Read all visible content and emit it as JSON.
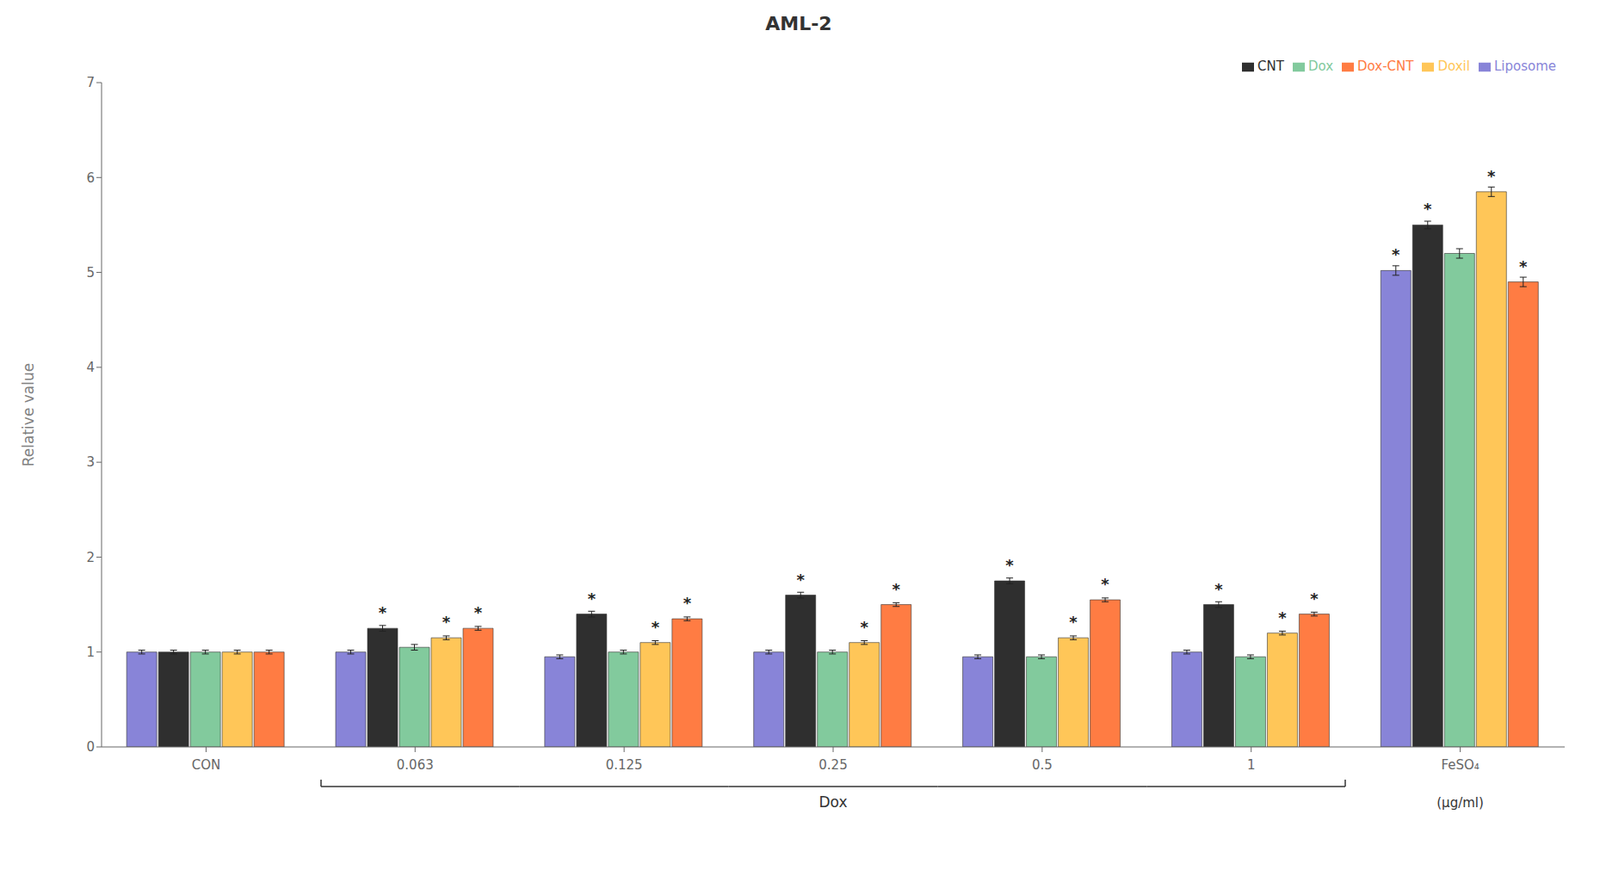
{
  "chart_data": {
    "type": "bar",
    "title": "AML-2",
    "y_label": "Relative value",
    "categories": [
      "CON",
      "0.063",
      "0.125",
      "0.25",
      "0.5",
      "1",
      "FeSO₄"
    ],
    "series": [
      {
        "name": "Liposome",
        "color": "#8884d8",
        "values": [
          1.0,
          1.0,
          0.95,
          1.0,
          0.95,
          1.0,
          5.02
        ],
        "errors": [
          0.02,
          0.02,
          0.02,
          0.02,
          0.02,
          0.02,
          0.05
        ],
        "significant": [
          false,
          false,
          false,
          false,
          false,
          false,
          true
        ]
      },
      {
        "name": "CNT",
        "color": "#2f2f2f",
        "values": [
          1.0,
          1.25,
          1.4,
          1.6,
          1.75,
          1.5,
          5.5
        ],
        "errors": [
          0.02,
          0.03,
          0.03,
          0.03,
          0.03,
          0.03,
          0.04
        ],
        "significant": [
          false,
          true,
          true,
          true,
          true,
          true,
          true
        ]
      },
      {
        "name": "Dox",
        "color": "#82ca9d",
        "values": [
          1.0,
          1.05,
          1.0,
          1.0,
          0.95,
          0.95,
          5.2
        ],
        "errors": [
          0.02,
          0.03,
          0.02,
          0.02,
          0.02,
          0.02,
          0.05
        ],
        "significant": [
          false,
          false,
          false,
          false,
          false,
          false,
          false
        ]
      },
      {
        "name": "Doxil",
        "color": "#ffc658",
        "values": [
          1.0,
          1.15,
          1.1,
          1.1,
          1.15,
          1.2,
          5.85
        ],
        "errors": [
          0.02,
          0.02,
          0.02,
          0.02,
          0.02,
          0.02,
          0.05
        ],
        "significant": [
          false,
          true,
          true,
          true,
          true,
          true,
          true
        ]
      },
      {
        "name": "Dox-CNT",
        "color": "#ff7c43",
        "values": [
          1.0,
          1.25,
          1.35,
          1.5,
          1.55,
          1.4,
          4.9
        ],
        "errors": [
          0.02,
          0.02,
          0.02,
          0.02,
          0.02,
          0.02,
          0.05
        ],
        "significant": [
          false,
          true,
          true,
          true,
          true,
          true,
          true
        ]
      }
    ],
    "significance_label": "*",
    "annotations": [
      {
        "text": "Dox",
        "from": "0.063",
        "to": "1"
      },
      {
        "text": "(μg/ml)",
        "at": "FeSO₄"
      }
    ],
    "ylim": [
      0,
      7
    ],
    "yticks": [
      0,
      1,
      2,
      3,
      4,
      5,
      6,
      7
    ],
    "grid": false,
    "legend": "upper right"
  }
}
